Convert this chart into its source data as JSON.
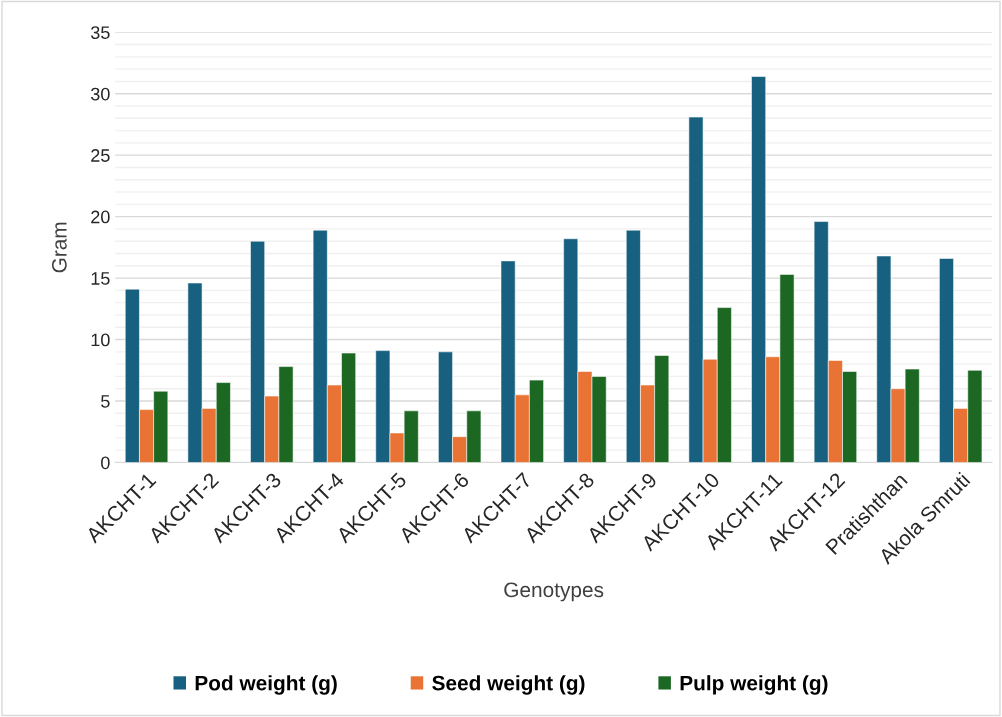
{
  "chart_data": {
    "type": "bar",
    "xlabel": "Genotypes",
    "ylabel": "Gram",
    "categories": [
      "AKCHT-1",
      "AKCHT-2",
      "AKCHT-3",
      "AKCHT-4",
      "AKCHT-5",
      "AKCHT-6",
      "AKCHT-7",
      "AKCHT-8",
      "AKCHT-9",
      "AKCHT-10",
      "AKCHT-11",
      "AKCHT-12",
      "Pratishthan",
      "Akola Smruti"
    ],
    "series": [
      {
        "name": "Pod weight (g)",
        "color": "#17607f",
        "values": [
          14.1,
          14.6,
          18.0,
          18.9,
          9.1,
          9.0,
          16.4,
          18.2,
          18.9,
          28.1,
          31.4,
          19.6,
          16.8,
          16.6
        ]
      },
      {
        "name": "Seed weight (g)",
        "color": "#e87334",
        "values": [
          4.3,
          4.4,
          5.4,
          6.3,
          2.4,
          2.1,
          5.5,
          7.4,
          6.3,
          8.4,
          8.6,
          8.3,
          6.0,
          4.4
        ]
      },
      {
        "name": "Pulp weight (g)",
        "color": "#1c6823",
        "values": [
          5.8,
          6.5,
          7.8,
          8.9,
          4.2,
          4.2,
          6.7,
          7.0,
          8.7,
          12.6,
          15.3,
          7.4,
          7.6,
          7.5
        ]
      }
    ],
    "ylim": [
      0,
      35
    ],
    "yticks": [
      0,
      5,
      10,
      15,
      20,
      25,
      30,
      35
    ],
    "grid": "y",
    "legend": "bottom"
  }
}
